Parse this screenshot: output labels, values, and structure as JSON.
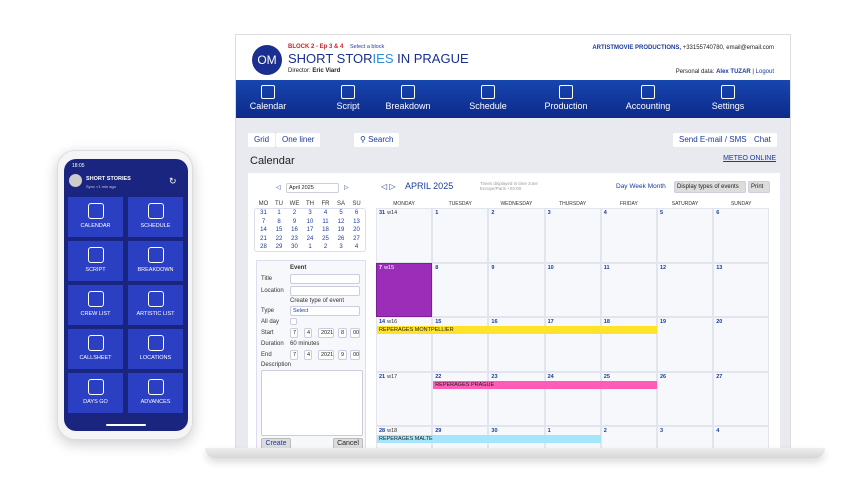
{
  "header": {
    "block": "BLOCK 2 - Ep 3 & 4",
    "select_block": "Select a block",
    "logo": "OM",
    "title_a": "SHORT STOR",
    "title_b": "IES",
    "title_c": " IN PRAGUE",
    "director_label": "Director:",
    "director": "Eric Viard",
    "company": "ARTISTMOVIE PRODUCTIONS,",
    "contact": "+33155740780, email@email.com",
    "personal_label": "Personal data:",
    "user": "Alex TUZAR",
    "logout": "Logout"
  },
  "nav": [
    {
      "label": "Calendar",
      "icon": "calendar-icon"
    },
    {
      "label": "Script",
      "icon": "script-icon"
    },
    {
      "label": "Breakdown",
      "icon": "film-reel-icon"
    },
    {
      "label": "Schedule",
      "icon": "camera-icon"
    },
    {
      "label": "Production",
      "icon": "clapperboard-icon"
    },
    {
      "label": "Accounting",
      "icon": "money-icon"
    },
    {
      "label": "Settings",
      "icon": "gear-icon"
    }
  ],
  "toolbar": {
    "grid": "Grid",
    "one_liner": "One liner",
    "search": "Search",
    "send": "Send E-mail / SMS",
    "chat": "Chat"
  },
  "page_title": "Calendar",
  "meteo": "METEO ONLINE",
  "mini": {
    "month": "April 2025",
    "days": [
      "MO",
      "TU",
      "WE",
      "TH",
      "FR",
      "SA",
      "SU"
    ],
    "weeks": [
      [
        "31",
        "1",
        "2",
        "3",
        "4",
        "5",
        "6"
      ],
      [
        "7",
        "8",
        "9",
        "10",
        "11",
        "12",
        "13"
      ],
      [
        "14",
        "15",
        "16",
        "17",
        "18",
        "19",
        "20"
      ],
      [
        "21",
        "22",
        "23",
        "24",
        "25",
        "26",
        "27"
      ],
      [
        "28",
        "29",
        "30",
        "1",
        "2",
        "3",
        "4"
      ]
    ]
  },
  "form": {
    "heading": "Event",
    "title": "Title",
    "location": "Location",
    "create_type": "Create type of event",
    "type": "Type",
    "type_value": "Select",
    "all_day": "All day",
    "start": "Start",
    "start_d": "7",
    "start_m": "4",
    "start_y": "2021",
    "start_h": "8",
    "start_min": "00",
    "duration": "Duration",
    "duration_value": "60 minutes",
    "end": "End",
    "end_d": "7",
    "end_m": "4",
    "end_y": "2021",
    "end_h": "9",
    "end_min": "00",
    "description": "Description",
    "create": "Create",
    "cancel": "Cancel"
  },
  "cal": {
    "month": "APRIL 2025",
    "tz": "Times displayed in time zone Europe/Paris +02:00",
    "day": "Day",
    "week": "Week",
    "month_view": "Month",
    "display_types": "Display types of events",
    "print": "Print",
    "days": [
      "MONDAY",
      "TUESDAY",
      "WEDNESDAY",
      "THURSDAY",
      "FRIDAY",
      "SATURDAY",
      "SUNDAY"
    ],
    "weeks": [
      {
        "w": "w14",
        "dates": [
          "31",
          "1",
          "2",
          "3",
          "4",
          "5",
          "6"
        ]
      },
      {
        "w": "w15",
        "dates": [
          "7",
          "8",
          "9",
          "10",
          "11",
          "12",
          "13"
        ]
      },
      {
        "w": "w16",
        "dates": [
          "14",
          "15",
          "16",
          "17",
          "18",
          "19",
          "20"
        ]
      },
      {
        "w": "w17",
        "dates": [
          "21",
          "22",
          "23",
          "24",
          "25",
          "26",
          "27"
        ]
      },
      {
        "w": "w18",
        "dates": [
          "28",
          "29",
          "30",
          "1",
          "2",
          "3",
          "4"
        ]
      }
    ],
    "events": [
      {
        "label": "REPERAGES MONTPELLIER",
        "week": 2,
        "start": 0,
        "end": 4,
        "color": "#ffe22a"
      },
      {
        "label": "REPERAGES PRAGUE",
        "week": 3,
        "start": 1,
        "end": 4,
        "color": "#ff5cb8"
      },
      {
        "label": "REPERAGES MALTE",
        "week": 4,
        "start": 0,
        "end": 3,
        "color": "#a6e6fb"
      }
    ],
    "highlight_color": "#9b2db8"
  },
  "phone": {
    "time": "18:05",
    "app": "SHORT STORIES",
    "sync": "Sync <1 min ago",
    "tiles": [
      {
        "label": "CALENDAR",
        "icon": "calendar-icon"
      },
      {
        "label": "SCHEDULE",
        "icon": "camera-icon"
      },
      {
        "label": "SCRIPT",
        "icon": "script-icon"
      },
      {
        "label": "BREAKDOWN",
        "icon": "film-reel-icon"
      },
      {
        "label": "CREW LIST",
        "icon": "crew-icon"
      },
      {
        "label": "ARTISTIC LIST",
        "icon": "star-icon"
      },
      {
        "label": "CALLSHEET",
        "icon": "clapperboard-icon"
      },
      {
        "label": "LOCATIONS",
        "icon": "map-pin-icon"
      },
      {
        "label": "DAYS GO",
        "icon": "stopwatch-icon"
      },
      {
        "label": "ADVANCES",
        "icon": "money-icon"
      }
    ]
  }
}
